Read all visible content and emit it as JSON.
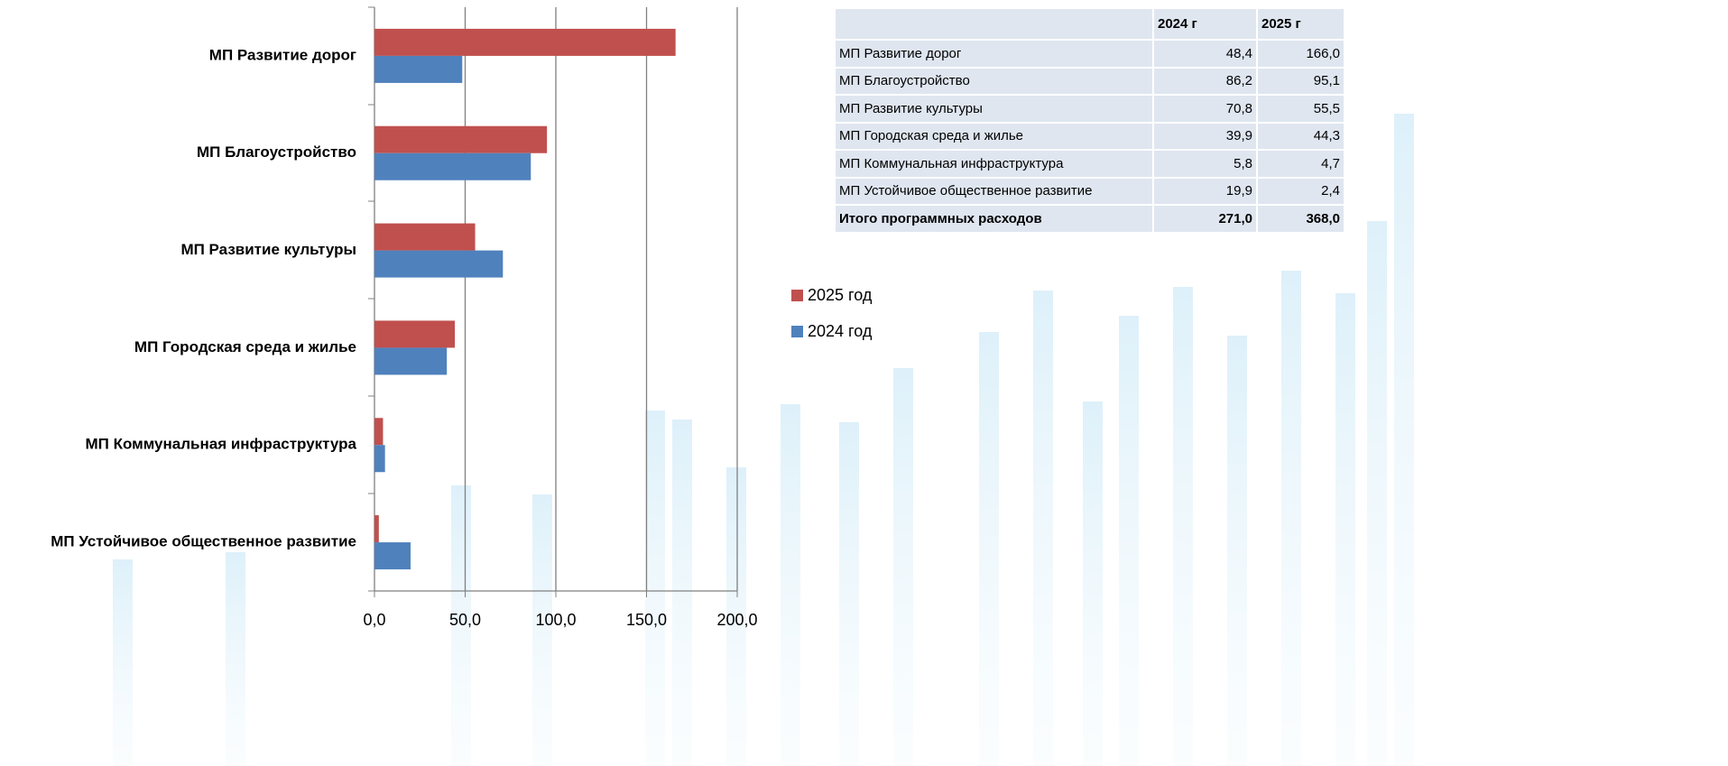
{
  "chart_data": {
    "type": "bar",
    "orientation": "horizontal",
    "categories": [
      "МП Развитие дорог",
      "МП Благоустройство",
      "МП Развитие культуры",
      "МП Городская среда и жилье",
      "МП Коммунальная инфраструктура",
      "МП Устойчивое общественное развитие"
    ],
    "series": [
      {
        "name": "2025 год",
        "color": "#c0504d",
        "values": [
          166.0,
          95.1,
          55.5,
          44.3,
          4.7,
          2.4
        ]
      },
      {
        "name": "2024 год",
        "color": "#4f81bd",
        "values": [
          48.4,
          86.2,
          70.8,
          39.9,
          5.8,
          19.9
        ]
      }
    ],
    "xlim": [
      0,
      200
    ],
    "xticks": [
      {
        "value": 0,
        "label": "0,0"
      },
      {
        "value": 50,
        "label": "50,0"
      },
      {
        "value": 100,
        "label": "100,0"
      },
      {
        "value": 150,
        "label": "150,0"
      },
      {
        "value": 200,
        "label": "200,0"
      }
    ],
    "grid": true,
    "legend": "right"
  },
  "table": {
    "header": [
      "2024 г",
      "2025 г"
    ],
    "rows": [
      [
        "МП Развитие дорог",
        "48,4",
        "166,0"
      ],
      [
        "МП Благоустройство",
        "86,2",
        "95,1"
      ],
      [
        "МП Развитие культуры",
        "70,8",
        "55,5"
      ],
      [
        "МП Городская среда и жилье",
        "39,9",
        "44,3"
      ],
      [
        "МП Коммунальная инфраструктура",
        "5,8",
        "4,7"
      ],
      [
        "МП Устойчивое общественное развитие",
        "19,9",
        "2,4"
      ]
    ],
    "total": [
      "Итого  программных  расходов",
      "271,0",
      "368,0"
    ]
  }
}
